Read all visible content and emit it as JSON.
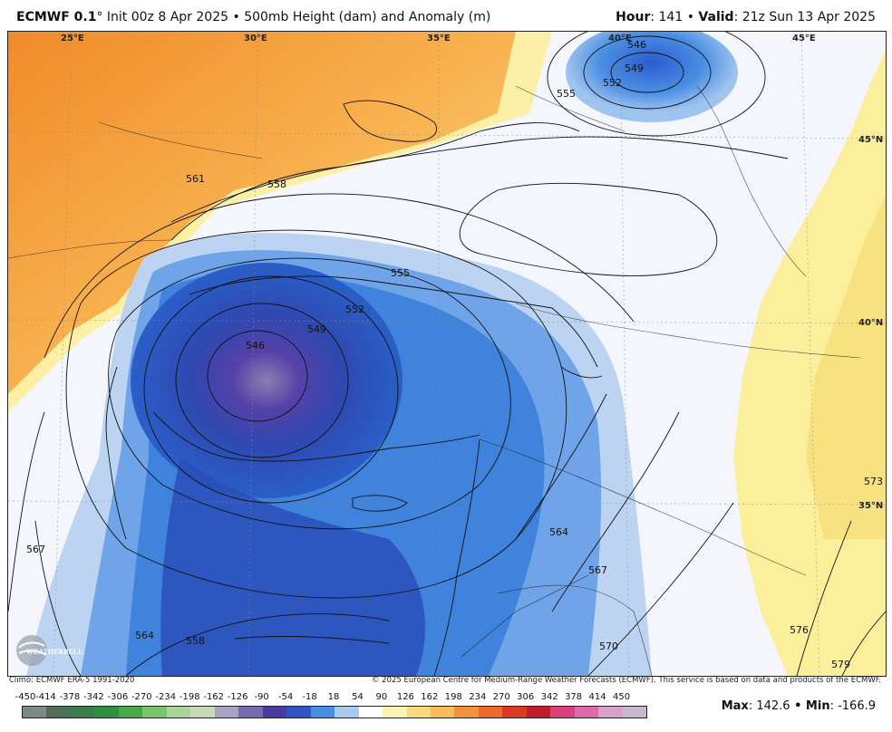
{
  "header": {
    "model": "ECMWF 0.1",
    "degree": "°",
    "init": "Init 00z 8 Apr 2025",
    "bullet": "•",
    "product": "500mb Height (dam) and Anomaly (m)",
    "hour_label": "Hour",
    "hour_value": ": 141",
    "valid_label": "Valid",
    "valid_value": ": 21z Sun 13 Apr 2025"
  },
  "map": {
    "lon_labels": [
      "25°E",
      "30°E",
      "35°E",
      "40°E",
      "45°E"
    ],
    "lat_labels": [
      "45°N",
      "40°N",
      "35°N"
    ],
    "contour_labels": [
      "546",
      "549",
      "552",
      "555",
      "558",
      "561",
      "564",
      "567",
      "570",
      "573",
      "576",
      "579",
      "546",
      "549",
      "552",
      "555",
      "558",
      "564",
      "567",
      "570",
      "573",
      "576"
    ],
    "colors": {
      "strong_positive": "#f08a2a",
      "positive": "#f8c766",
      "weak_positive": "#fbf0a6",
      "neutral": "#f4f6fb",
      "weak_negative": "#bcd4f2",
      "negative": "#3f83dc",
      "strong_negative": "#2a4fb8",
      "deep_negative": "#5541a8",
      "core": "#8a7fb0"
    }
  },
  "footer": {
    "climo": "Climo: ECMWF ERA-5 1991-2020",
    "copyright": "© 2025 European Centre for Medium-Range Weather Forecasts (ECMWF). This service is based on data and products of the ECMWF."
  },
  "colorbar": {
    "ticks": [
      "-450",
      "-414",
      "-378",
      "-342",
      "-306",
      "-270",
      "-234",
      "-198",
      "-162",
      "-126",
      "-90",
      "-54",
      "-18",
      "18",
      "54",
      "90",
      "126",
      "162",
      "198",
      "234",
      "270",
      "306",
      "342",
      "378",
      "414",
      "450"
    ],
    "colors": [
      "#7d8a84",
      "#4f6e5a",
      "#3c7d4b",
      "#2f8e3f",
      "#48a94a",
      "#7cc36d",
      "#a9d59a",
      "#c9d9b8",
      "#a9a2c4",
      "#7a6bb0",
      "#4a3c9f",
      "#2e55c3",
      "#4a8fe3",
      "#a9cbf1",
      "#ffffff",
      "#fdf3b0",
      "#fbd97e",
      "#f9bc5a",
      "#f3923a",
      "#ec6a2c",
      "#dc3a22",
      "#c01e2c",
      "#d8407a",
      "#e06aa8",
      "#d9a0c8",
      "#c6b9d0"
    ]
  },
  "stats": {
    "max_label": "Max",
    "max_value": ": 142.6",
    "separator": " • ",
    "min_label": "Min",
    "min_value": ": -166.9"
  },
  "logo": {
    "text": "WEATHERBELL"
  }
}
